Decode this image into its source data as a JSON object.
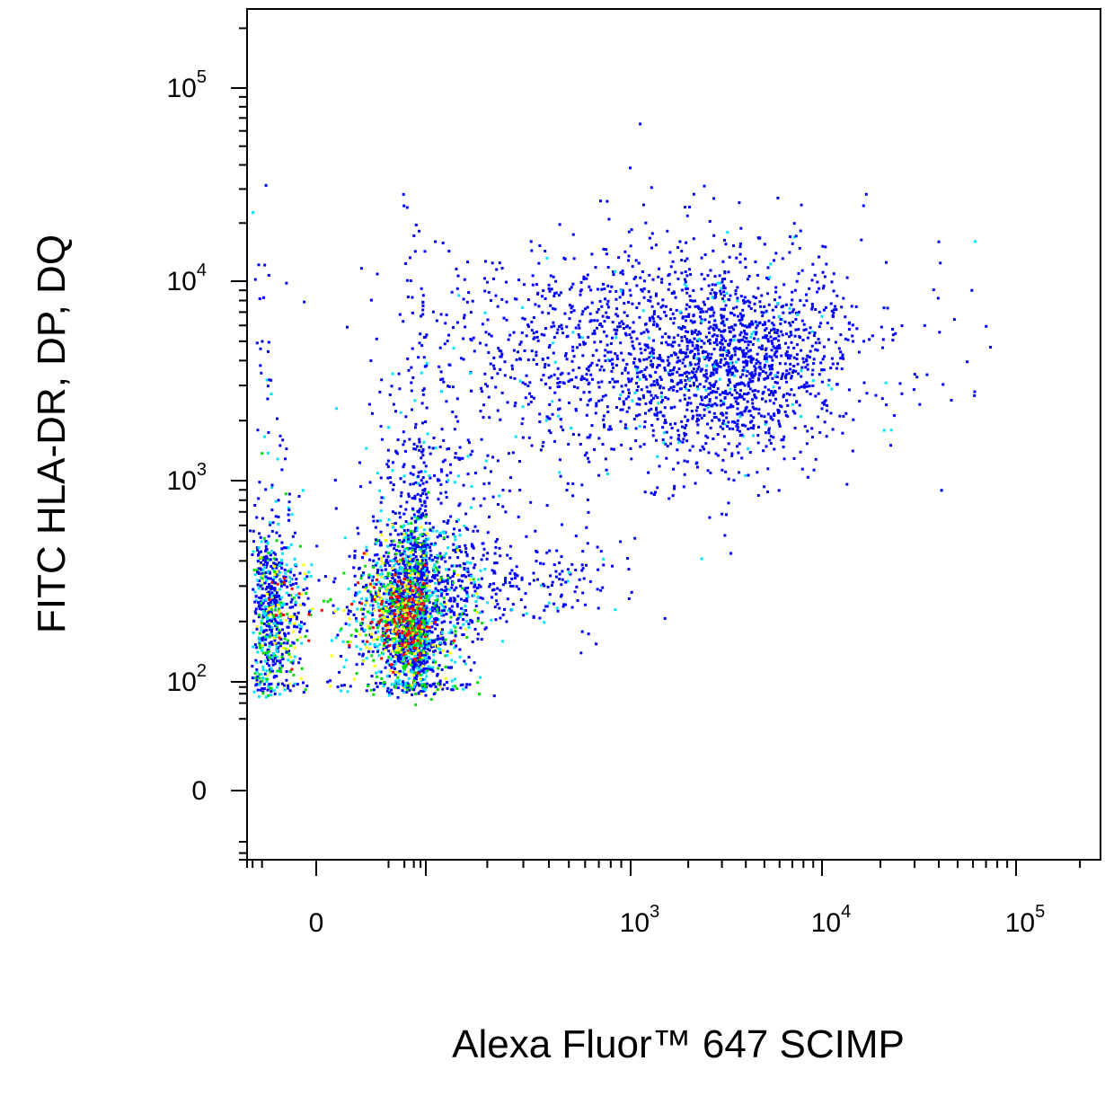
{
  "chart_data": {
    "type": "scatter",
    "title": "",
    "xlabel": "Alexa Fluor™ 647 SCIMP",
    "ylabel": "FITC  HLA-DR, DP, DQ",
    "x_scale": "biexponential",
    "y_scale": "biexponential",
    "xlim": [
      -150,
      250000
    ],
    "ylim": [
      -60,
      250000
    ],
    "x_ticks": [
      {
        "value": 0,
        "base": "0",
        "exp": ""
      },
      {
        "value": 1000,
        "base": "10",
        "exp": "3"
      },
      {
        "value": 10000,
        "base": "10",
        "exp": "4"
      },
      {
        "value": 100000,
        "base": "10",
        "exp": "5"
      }
    ],
    "y_ticks": [
      {
        "value": 0,
        "base": "0",
        "exp": ""
      },
      {
        "value": 100,
        "base": "10",
        "exp": "2"
      },
      {
        "value": 1000,
        "base": "10",
        "exp": "3"
      },
      {
        "value": 10000,
        "base": "10",
        "exp": "4"
      },
      {
        "value": 100000,
        "base": "10",
        "exp": "5"
      }
    ],
    "grid": false,
    "legend": "none",
    "density_colors": [
      "#0000ff",
      "#00e5ff",
      "#00dd00",
      "#ffff00",
      "#ff0000"
    ],
    "populations": [
      {
        "x_center": 40,
        "x_spread": 28,
        "y_center": 210,
        "y_spread": 0.12,
        "count": 420,
        "density": "peak"
      },
      {
        "x_center": 40,
        "x_spread": 55,
        "y_center": 220,
        "y_spread": 0.22,
        "count": 2600,
        "density": "dense"
      },
      {
        "x_center": 60,
        "x_spread": 70,
        "y_center": 600,
        "y_spread": 0.3,
        "count": 420,
        "density": "medium"
      },
      {
        "x_center": 250,
        "x_spread": 0.3,
        "y_center": 330,
        "y_spread": 0.13,
        "count": 260,
        "density": "sparse"
      },
      {
        "x_center": 1500,
        "x_spread": 0.55,
        "y_center": 4500,
        "y_spread": 0.3,
        "count": 1600,
        "density": "sparse"
      },
      {
        "x_center": 3800,
        "x_spread": 0.22,
        "y_center": 3800,
        "y_spread": 0.22,
        "count": 650,
        "density": "sparse"
      },
      {
        "x_center": 50,
        "x_spread": 80,
        "y_center": 4500,
        "y_spread": 0.35,
        "count": 80,
        "density": "sparse"
      }
    ]
  }
}
